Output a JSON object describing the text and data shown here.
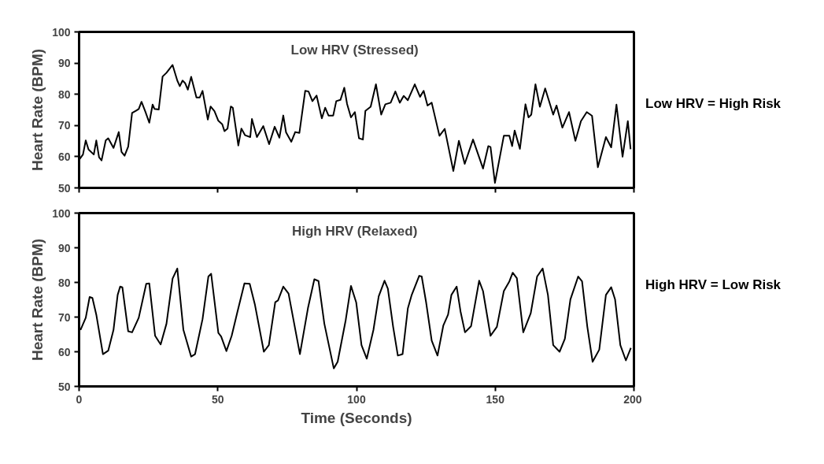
{
  "chart_data": [
    {
      "type": "line",
      "title": "Low HRV  (Stressed)",
      "ylabel": "Heart Rate (BPM)",
      "annotations": [
        "Low HRV = High Risk"
      ],
      "x": [
        0,
        1.4,
        2.4,
        3.4,
        5.3,
        6.2,
        7.2,
        8.1,
        9.6,
        10.5,
        12.4,
        14.3,
        15.3,
        16.4,
        17.7,
        19.1,
        20.6,
        21.5,
        22.5,
        23.9,
        25.3,
        26.5,
        27.2,
        28.7,
        30.1,
        31.5,
        33.7,
        35.4,
        36.3,
        37.3,
        38.2,
        39.2,
        40.4,
        42.3,
        43.5,
        44.5,
        46.4,
        47.4,
        48.8,
        50.2,
        51.6,
        52.4,
        53.5,
        54.7,
        55.4,
        57.4,
        58.5,
        59.8,
        61.7,
        62.3,
        64.1,
        66.4,
        68.5,
        70.5,
        72.2,
        73.6,
        74.6,
        76.5,
        77.9,
        79.4,
        81.5,
        82.7,
        84.1,
        85.6,
        87.5,
        88.7,
        89.9,
        91.6,
        92.7,
        94.2,
        95.6,
        96.6,
        98,
        99.4,
        100.9,
        102.3,
        103.2,
        105.1,
        107,
        108.9,
        110.4,
        112.3,
        114,
        115.6,
        117,
        118.5,
        121,
        122.9,
        124.2,
        125.6,
        127.1,
        129.9,
        131.8,
        134.9,
        136.9,
        139,
        142,
        145.6,
        147.5,
        148.3,
        149.9,
        153.1,
        155.1,
        156.1,
        157,
        158.9,
        160.9,
        162,
        163,
        164.5,
        166.1,
        168,
        170.9,
        172.1,
        174.2,
        176.6,
        178.9,
        180.9,
        183,
        184.9,
        187,
        189.9,
        191.8,
        193.7,
        195.9,
        197.8,
        198.8
      ],
      "series": [
        {
          "color": "#000000",
          "values": [
            59,
            60.7,
            65.2,
            62.3,
            60.7,
            65.2,
            59.8,
            58.8,
            65.2,
            65.9,
            62.8,
            67.9,
            61.5,
            60.3,
            63.2,
            74,
            74.8,
            75.3,
            77.6,
            74.4,
            70.9,
            76.7,
            75.3,
            75.1,
            85.7,
            86.9,
            89.4,
            84.4,
            82.6,
            84.4,
            83.6,
            81.5,
            85.6,
            79,
            79,
            81.1,
            71.9,
            76.1,
            74.6,
            71.5,
            70.4,
            68.2,
            69,
            76.1,
            75.7,
            63.6,
            69,
            66.9,
            66.3,
            72.1,
            66.3,
            69.8,
            64,
            69.6,
            66.1,
            73.2,
            67.8,
            64.8,
            67.9,
            67.6,
            81.1,
            80.9,
            77.8,
            79.6,
            72.3,
            75.7,
            73.2,
            73.2,
            77.8,
            78.2,
            82.1,
            76.9,
            72.6,
            74.3,
            65.9,
            65.5,
            74.7,
            76,
            83.2,
            73.5,
            76.8,
            77.3,
            80.9,
            77.3,
            79.5,
            78.1,
            83.2,
            79.2,
            81.1,
            76.4,
            77.3,
            66.7,
            68.9,
            55.4,
            65.1,
            57.7,
            65.5,
            56.2,
            63.4,
            63.1,
            51.6,
            66.7,
            66.7,
            63.4,
            68.4,
            62.5,
            76.8,
            72.6,
            73.5,
            83.2,
            76,
            81.9,
            73.5,
            76.4,
            69.3,
            74.3,
            65.1,
            71.4,
            74.3,
            73.1,
            56.6,
            66.3,
            63,
            76.7,
            60,
            71.4,
            62.4
          ]
        }
      ],
      "xlim": [
        0,
        200
      ],
      "xticks": [
        0,
        50,
        100,
        150,
        200
      ],
      "ylim": [
        50,
        100
      ],
      "yticks": [
        50,
        60,
        70,
        80,
        90,
        100
      ],
      "tick_labels": "y",
      "grid": false,
      "marker": "none",
      "line_style": "solid"
    },
    {
      "type": "line",
      "title": "High HRV  (Relaxed)",
      "ylabel": "Heart Rate (BPM)",
      "xlabel": "Time (Seconds)",
      "annotations": [
        "High HRV = Low Risk"
      ],
      "x": [
        0.5,
        2.4,
        3.8,
        4.8,
        6.2,
        8.6,
        10.5,
        12.4,
        13.9,
        14.8,
        15.6,
        17.7,
        19.1,
        21.5,
        24.2,
        25.3,
        27.4,
        29.4,
        31.5,
        33.7,
        35.4,
        37.6,
        40.4,
        41.8,
        44.5,
        46.6,
        47.6,
        50.2,
        51.2,
        53.1,
        55,
        57.1,
        59.6,
        61.5,
        63.4,
        66.6,
        68.4,
        70.7,
        71.7,
        73.6,
        75.5,
        79.6,
        82.5,
        84.8,
        86.3,
        88.4,
        91.8,
        93.2,
        96.1,
        98,
        99.9,
        101.8,
        103.7,
        106.1,
        108,
        110.1,
        111.3,
        113.2,
        114.9,
        116.6,
        118.5,
        119.9,
        122.6,
        123.5,
        125.1,
        127.1,
        129.2,
        131.3,
        133,
        134.2,
        136.1,
        137.5,
        139.1,
        141.3,
        144.2,
        145.6,
        148.3,
        150.6,
        153.1,
        155.1,
        156.3,
        157.8,
        160.1,
        162.8,
        165.1,
        167.1,
        169,
        170.9,
        173.2,
        175.1,
        177.1,
        179.9,
        181.3,
        183.2,
        185.1,
        187.5,
        189.9,
        191.8,
        193.2,
        195.1,
        197.1,
        198.9
      ],
      "series": [
        {
          "color": "#000000",
          "values": [
            66.3,
            69.8,
            75.8,
            75.5,
            70.7,
            59.3,
            60.3,
            66.3,
            76.4,
            78.8,
            78.6,
            65.9,
            65.6,
            69.8,
            79.6,
            79.7,
            64.6,
            62.1,
            68.1,
            81.1,
            84,
            66.3,
            58.6,
            59.3,
            69.4,
            81.7,
            82.5,
            65.4,
            64.4,
            60.2,
            64.6,
            71.6,
            79.7,
            79.6,
            73.5,
            60,
            61.9,
            74.3,
            74.8,
            78.8,
            76.8,
            59.3,
            72.6,
            80.9,
            80.4,
            68.1,
            55.2,
            57.1,
            69.1,
            79,
            74.2,
            61.9,
            58,
            66.3,
            76,
            80.5,
            78.2,
            67.2,
            58.9,
            59.3,
            72.5,
            76.4,
            81.9,
            81.7,
            74.2,
            63.2,
            58.9,
            67.6,
            70.7,
            76.4,
            78.8,
            71.6,
            65.6,
            67.4,
            80.5,
            77.5,
            64.6,
            67.2,
            77.5,
            80.3,
            82.8,
            81.2,
            65.6,
            71.1,
            81.7,
            84,
            76.4,
            61.9,
            60,
            63.7,
            75.1,
            81.7,
            80.3,
            67.2,
            57.1,
            60.6,
            76.4,
            78.6,
            75.1,
            61.9,
            57.5,
            61.1
          ]
        }
      ],
      "xlim": [
        0,
        200
      ],
      "xticks": [
        0,
        50,
        100,
        150,
        200
      ],
      "ylim": [
        50,
        100
      ],
      "yticks": [
        50,
        60,
        70,
        80,
        90,
        100
      ],
      "grid": false,
      "marker": "none",
      "line_style": "solid"
    }
  ]
}
